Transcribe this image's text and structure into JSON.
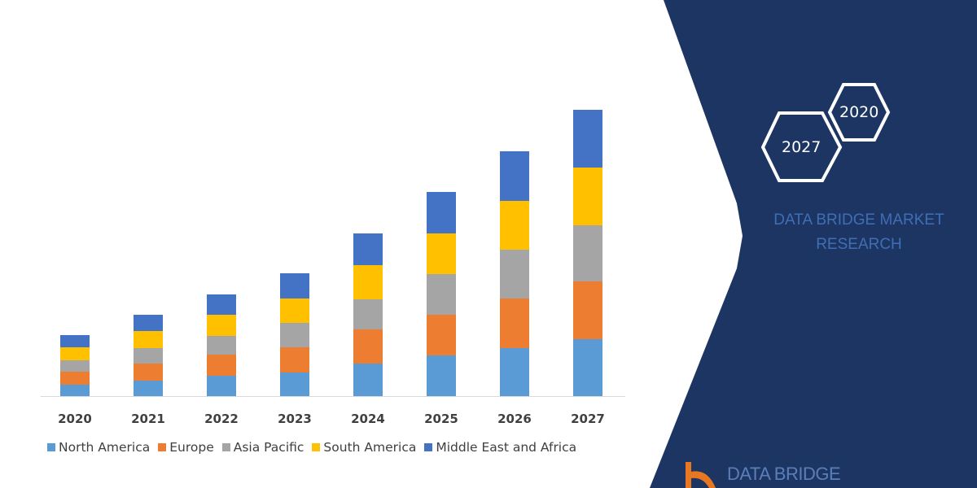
{
  "chart_data": {
    "type": "bar",
    "stacked": true,
    "title": "",
    "xlabel": "",
    "ylabel": "",
    "categories": [
      "2020",
      "2021",
      "2022",
      "2023",
      "2024",
      "2025",
      "2026",
      "2027"
    ],
    "series": [
      {
        "name": "North America",
        "color": "#5b9bd5",
        "values": [
          14,
          19,
          25,
          29,
          40,
          50,
          59,
          70
        ]
      },
      {
        "name": "Europe",
        "color": "#ed7d31",
        "values": [
          16,
          21,
          26,
          31,
          42,
          50,
          61,
          71
        ]
      },
      {
        "name": "Asia Pacific",
        "color": "#a5a5a5",
        "values": [
          14,
          19,
          23,
          30,
          37,
          50,
          60,
          69
        ]
      },
      {
        "name": "South America",
        "color": "#ffc000",
        "values": [
          16,
          21,
          26,
          30,
          42,
          50,
          60,
          71
        ]
      },
      {
        "name": "Middle East and Africa",
        "color": "#4472c4",
        "values": [
          15,
          20,
          25,
          31,
          39,
          51,
          61,
          71
        ]
      }
    ],
    "y_axis_shown": false,
    "grid": false,
    "legend_placement": "bottom"
  },
  "panel": {
    "hex_years": [
      "2020",
      "2027"
    ],
    "brand_line1": "DATA BRIDGE MARKET",
    "brand_line2": "RESEARCH",
    "logo_text": "DATA BRIDGE",
    "panel_color": "#1d3563"
  }
}
